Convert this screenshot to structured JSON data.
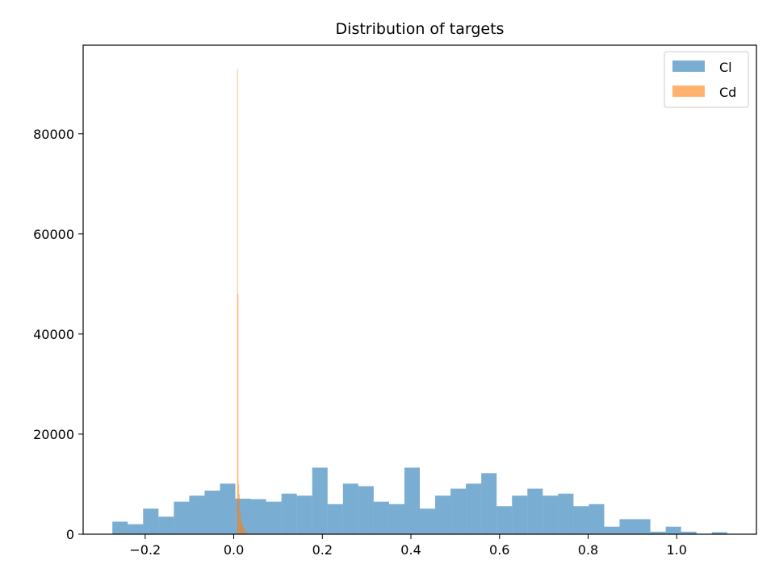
{
  "chart_data": {
    "type": "histogram",
    "title": "Distribution of targets",
    "xlabel": "",
    "ylabel": "",
    "xlim": [
      -0.34,
      1.18
    ],
    "ylim": [
      0,
      97700
    ],
    "x_ticks": [
      -0.2,
      0.0,
      0.2,
      0.4,
      0.6,
      0.8,
      1.0
    ],
    "x_tick_labels": [
      "−0.2",
      "0.0",
      "0.2",
      "0.4",
      "0.6",
      "0.8",
      "1.0"
    ],
    "y_ticks": [
      0,
      20000,
      40000,
      60000,
      80000
    ],
    "y_tick_labels": [
      "0",
      "20000",
      "40000",
      "60000",
      "80000"
    ],
    "legend_position": "top-right",
    "grid": false,
    "series": [
      {
        "name": "Cl",
        "color": "#1f77b4",
        "opacity": 0.6,
        "bin_width": 0.0347,
        "bin_starts": [
          -0.274,
          -0.2393,
          -0.2046,
          -0.1699,
          -0.1352,
          -0.1005,
          -0.0658,
          -0.0311,
          0.0036,
          0.0383,
          0.073,
          0.1077,
          0.1424,
          0.1771,
          0.2118,
          0.2465,
          0.2812,
          0.3159,
          0.3506,
          0.3853,
          0.42,
          0.4547,
          0.4894,
          0.5241,
          0.5588,
          0.5935,
          0.6282,
          0.6629,
          0.6976,
          0.7323,
          0.767,
          0.8017,
          0.8364,
          0.8711,
          0.9058,
          0.9405,
          0.9752,
          1.0099,
          1.0446,
          1.0793
        ],
        "counts": [
          2500,
          2000,
          5100,
          3500,
          6500,
          7700,
          8700,
          10100,
          7100,
          7000,
          6500,
          8100,
          7700,
          13300,
          6000,
          10100,
          9600,
          6500,
          6000,
          13300,
          5100,
          7700,
          9100,
          10100,
          12200,
          5600,
          7700,
          9100,
          7700,
          8100,
          5600,
          6000,
          1500,
          3000,
          3000,
          500,
          1500,
          500,
          0,
          400
        ]
      },
      {
        "name": "Cd",
        "color": "#ff7f0e",
        "opacity": 0.6,
        "bin_width": 0.0015,
        "bin_starts": [
          0.0075,
          0.009,
          0.0105,
          0.012,
          0.0135,
          0.015,
          0.0165,
          0.018,
          0.0195,
          0.021,
          0.0225,
          0.024,
          0.0255,
          0.027,
          0.0285,
          0.03
        ],
        "counts": [
          93000,
          48000,
          10000,
          8000,
          4500,
          3500,
          2800,
          2200,
          1800,
          1500,
          1200,
          900,
          700,
          500,
          300,
          200
        ]
      }
    ]
  }
}
